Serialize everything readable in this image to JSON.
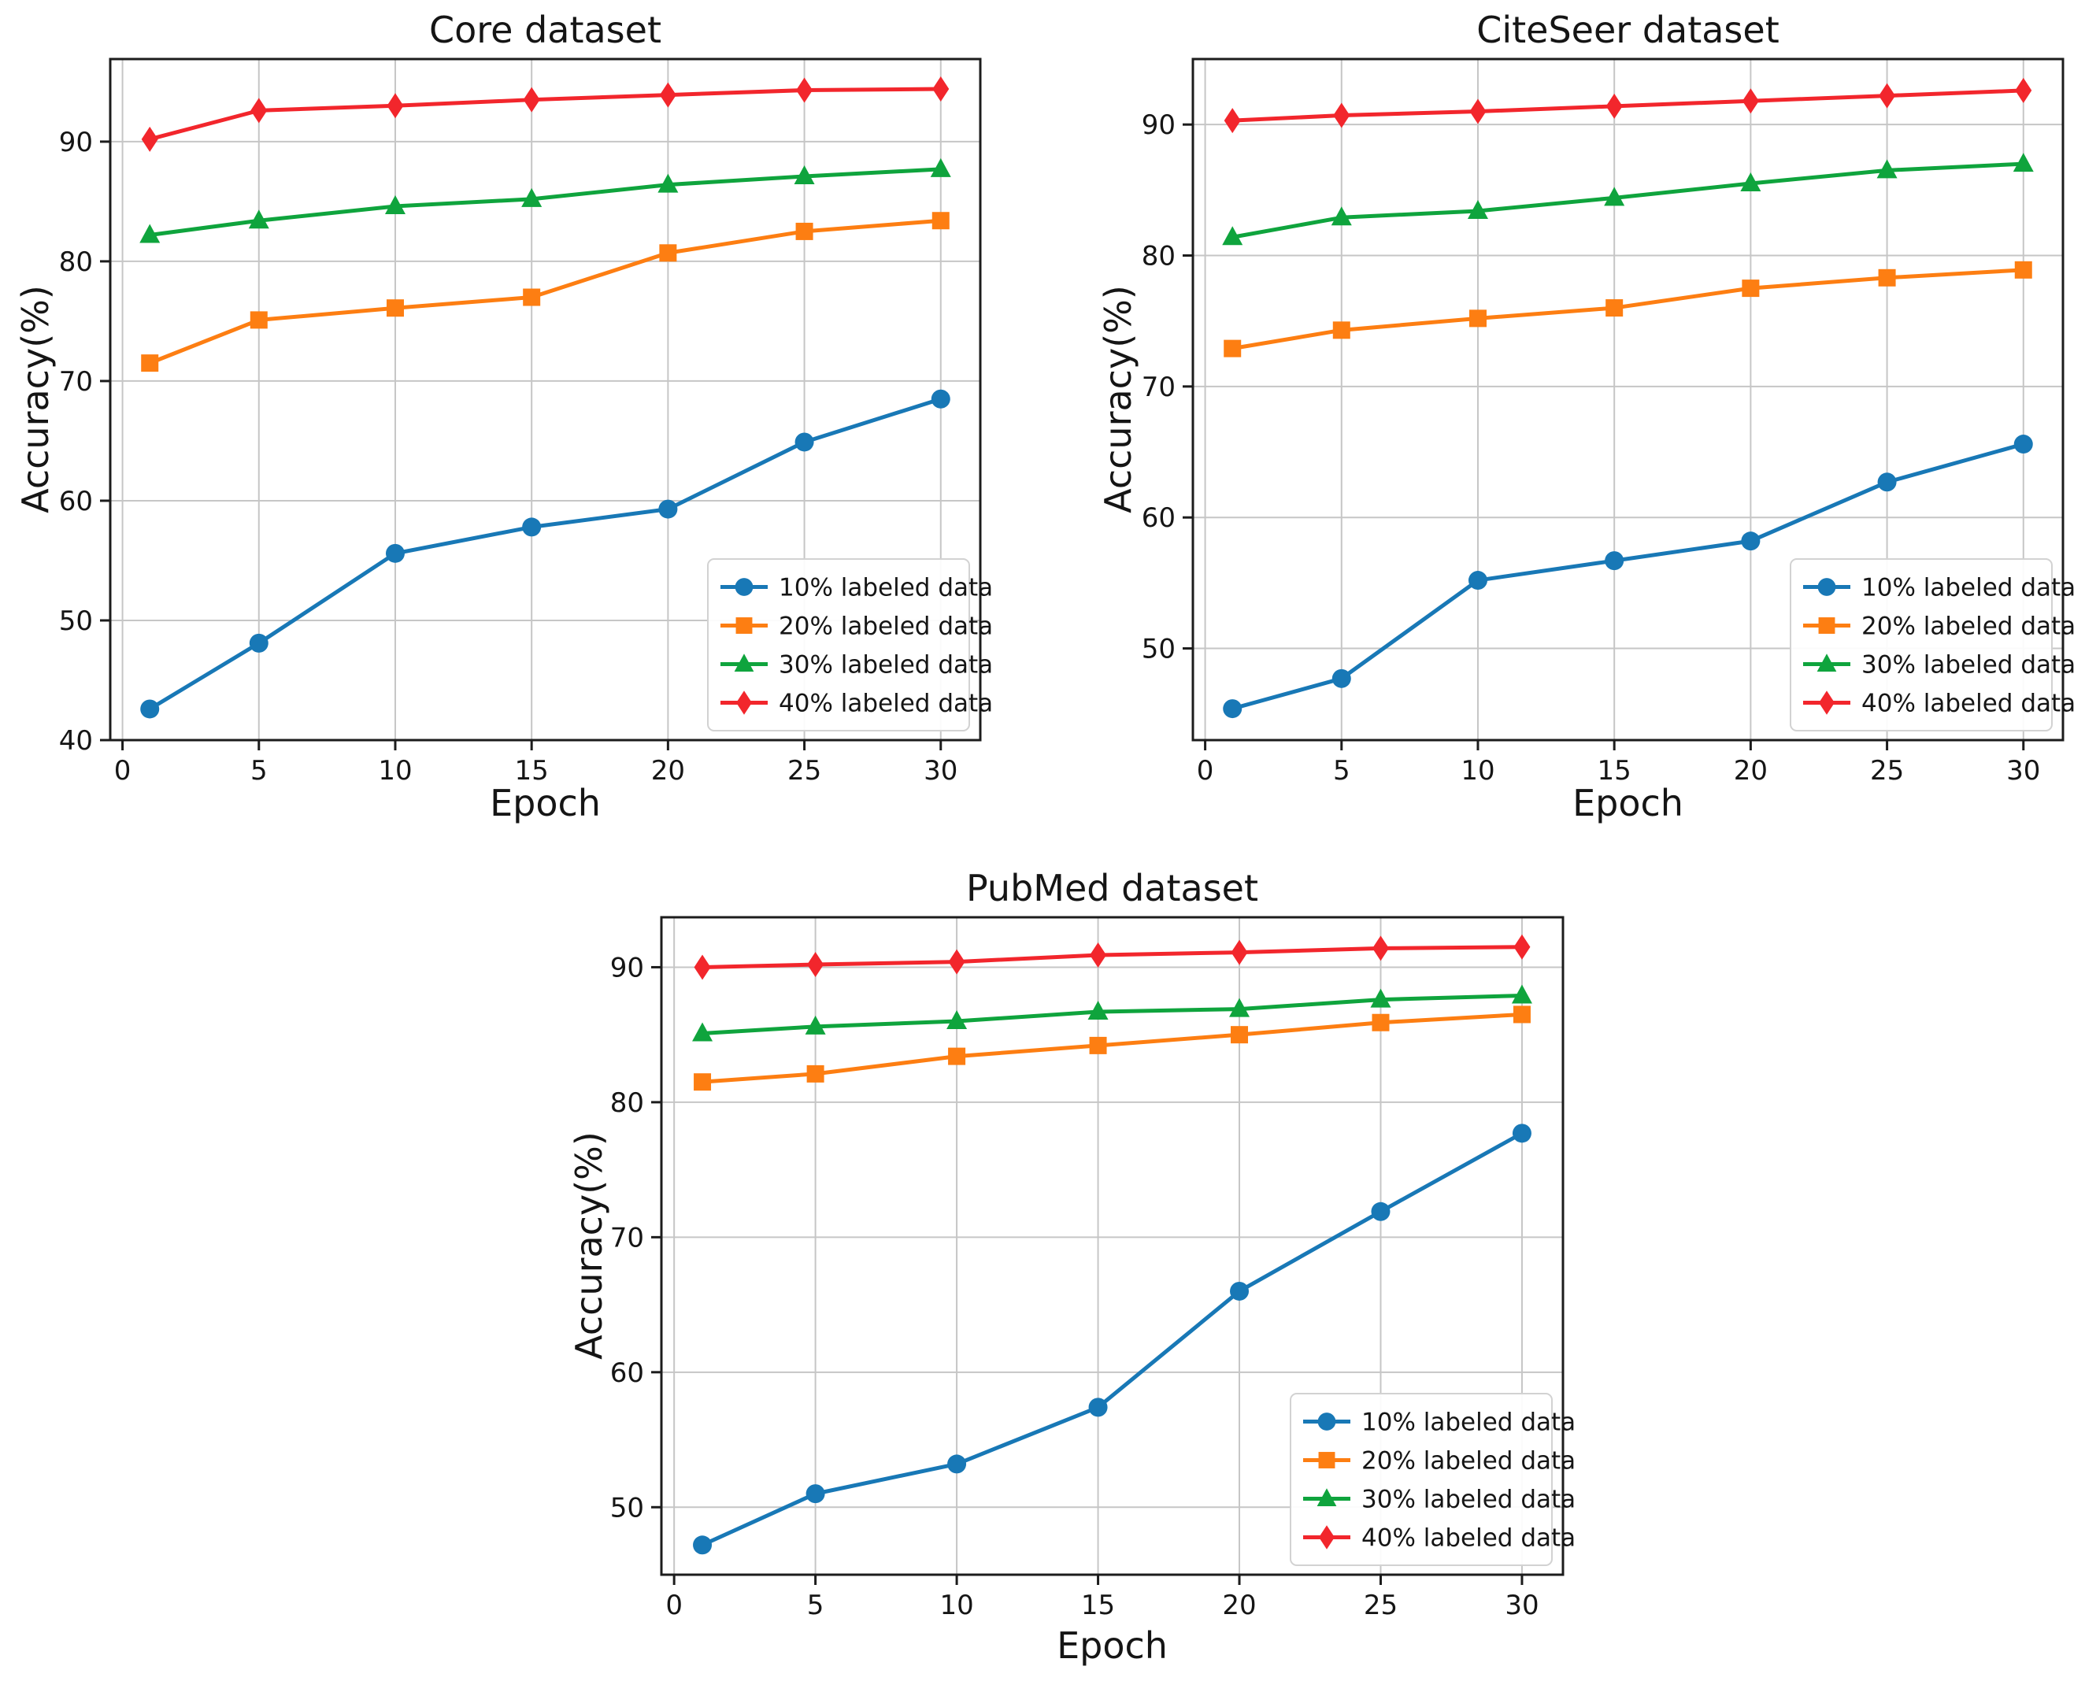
{
  "page": {
    "background": "#ffffff"
  },
  "palette": {
    "blue": "#1878b6",
    "orange": "#fd7e12",
    "green": "#0fa43d",
    "red": "#f2262c",
    "grid": "#c6c6c6",
    "spine": "#1c1c1c",
    "text": "#151515",
    "legend_border": "#d2d2d2"
  },
  "chart_data": [
    {
      "type": "line",
      "title": "Core dataset",
      "xlabel": "Epoch",
      "ylabel": "Accuracy(%)",
      "x": [
        1,
        5,
        10,
        15,
        20,
        25,
        30
      ],
      "xticks": [
        0,
        5,
        10,
        15,
        20,
        25,
        30
      ],
      "yticks": [
        40,
        50,
        60,
        70,
        80,
        90
      ],
      "xlim": [
        -0.45,
        31.45
      ],
      "ylim": [
        40.0,
        96.9
      ],
      "grid": true,
      "legend_position": "lower right",
      "series": [
        {
          "name": "10% labeled data",
          "color": "blue",
          "marker": "circle",
          "values": [
            42.6,
            48.1,
            55.6,
            57.8,
            59.3,
            64.9,
            68.5
          ]
        },
        {
          "name": "20% labeled data",
          "color": "orange",
          "marker": "square",
          "values": [
            71.5,
            75.1,
            76.1,
            77.0,
            80.7,
            82.5,
            83.4
          ]
        },
        {
          "name": "30% labeled data",
          "color": "green",
          "marker": "triangle",
          "values": [
            82.2,
            83.4,
            84.6,
            85.2,
            86.4,
            87.1,
            87.7
          ]
        },
        {
          "name": "40% labeled data",
          "color": "red",
          "marker": "diamond",
          "values": [
            90.2,
            92.6,
            93.0,
            93.5,
            93.9,
            94.3,
            94.4
          ]
        }
      ]
    },
    {
      "type": "line",
      "title": "CiteSeer dataset",
      "xlabel": "Epoch",
      "ylabel": "Accuracy(%)",
      "x": [
        1,
        5,
        10,
        15,
        20,
        25,
        30
      ],
      "xticks": [
        0,
        5,
        10,
        15,
        20,
        25,
        30
      ],
      "yticks": [
        50,
        60,
        70,
        80,
        90
      ],
      "xlim": [
        -0.45,
        31.45
      ],
      "ylim": [
        43.0,
        95.0
      ],
      "grid": true,
      "legend_position": "lower right",
      "series": [
        {
          "name": "10% labeled data",
          "color": "blue",
          "marker": "circle",
          "values": [
            45.4,
            47.7,
            55.2,
            56.7,
            58.2,
            62.7,
            65.6
          ]
        },
        {
          "name": "20% labeled data",
          "color": "orange",
          "marker": "square",
          "values": [
            72.9,
            74.3,
            75.2,
            76.0,
            77.5,
            78.3,
            78.9
          ]
        },
        {
          "name": "30% labeled data",
          "color": "green",
          "marker": "triangle",
          "values": [
            81.4,
            82.9,
            83.4,
            84.4,
            85.5,
            86.5,
            87.0
          ]
        },
        {
          "name": "40% labeled data",
          "color": "red",
          "marker": "diamond",
          "values": [
            90.3,
            90.7,
            91.0,
            91.4,
            91.8,
            92.2,
            92.6
          ]
        }
      ]
    },
    {
      "type": "line",
      "title": "PubMed dataset",
      "xlabel": "Epoch",
      "ylabel": "Accuracy(%)",
      "x": [
        1,
        5,
        10,
        15,
        20,
        25,
        30
      ],
      "xticks": [
        0,
        5,
        10,
        15,
        20,
        25,
        30
      ],
      "yticks": [
        50,
        60,
        70,
        80,
        90
      ],
      "xlim": [
        -0.45,
        31.45
      ],
      "ylim": [
        45.0,
        93.7
      ],
      "grid": true,
      "legend_position": "lower right",
      "series": [
        {
          "name": "10% labeled data",
          "color": "blue",
          "marker": "circle",
          "values": [
            47.2,
            51.0,
            53.2,
            57.4,
            66.0,
            71.9,
            77.7
          ]
        },
        {
          "name": "20% labeled data",
          "color": "orange",
          "marker": "square",
          "values": [
            81.5,
            82.1,
            83.4,
            84.2,
            85.0,
            85.9,
            86.5
          ]
        },
        {
          "name": "30% labeled data",
          "color": "green",
          "marker": "triangle",
          "values": [
            85.1,
            85.6,
            86.0,
            86.7,
            86.9,
            87.6,
            87.9
          ]
        },
        {
          "name": "40% labeled data",
          "color": "red",
          "marker": "diamond",
          "values": [
            90.0,
            90.2,
            90.4,
            90.9,
            91.1,
            91.4,
            91.5
          ]
        }
      ]
    }
  ]
}
